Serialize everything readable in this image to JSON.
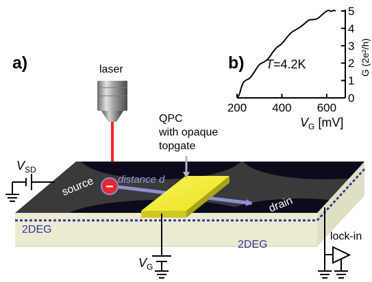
{
  "panel_a": {
    "label": "a)",
    "laser_label": "laser",
    "electron_symbol": "−",
    "distance_label": "distance d",
    "qpc_line1": "QPC",
    "qpc_line2": "with opaque",
    "qpc_line3": "topgate",
    "source_label": "source",
    "drain_label": "drain",
    "twodeg_left": "2DEG",
    "twodeg_right": "2DEG",
    "vsd_main": "V",
    "vsd_sub": "SD",
    "vg_main": "V",
    "vg_sub": "G",
    "lockin_label": "lock-in"
  },
  "panel_b": {
    "label": "b)",
    "temp_main": "T",
    "temp_rest": "=4.2K",
    "xlabel_main": "V",
    "xlabel_sub": "G",
    "xlabel_unit": " [mV]",
    "ylabel": "G (2e²/h)"
  },
  "colors": {
    "surface": "#3a3a3a",
    "dark_region": "#0b0b1c",
    "substrate": "#ecebd2",
    "substrate_side": "#dfdfc4",
    "topgate": "#f2ee2a",
    "laser_beam": "#ff2222",
    "arrow": "#8e8ed2",
    "twodeg": "#2f3a99",
    "electron": "#e8262e"
  },
  "chart_data": {
    "type": "line",
    "title": "",
    "xlabel": "V_G [mV]",
    "ylabel": "G (2e²/h)",
    "xlim": [
      200,
      640
    ],
    "ylim": [
      0,
      5
    ],
    "xticks": [
      200,
      400,
      600
    ],
    "yticks": [
      0,
      1,
      2,
      3,
      4,
      5
    ],
    "grid": false,
    "series": [
      {
        "x": [
          200,
          210,
          220,
          230,
          245,
          260,
          280,
          300,
          320,
          340,
          360,
          380,
          400,
          420,
          440,
          460,
          480,
          500,
          520,
          540,
          560,
          580,
          600,
          610,
          620,
          630,
          640
        ],
        "y": [
          0.0,
          0.15,
          0.65,
          0.95,
          1.05,
          1.15,
          1.55,
          1.95,
          2.05,
          2.25,
          2.65,
          2.95,
          3.1,
          3.45,
          3.75,
          3.9,
          4.05,
          4.25,
          4.5,
          4.5,
          4.55,
          4.8,
          5.0,
          5.05,
          4.95,
          5.05,
          5.0
        ]
      }
    ]
  }
}
